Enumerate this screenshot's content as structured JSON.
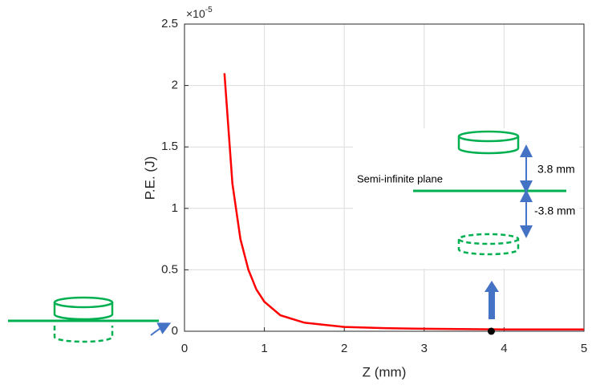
{
  "chart_data": {
    "type": "line",
    "multiplier": "×10",
    "multiplier_exponent": "-5",
    "x_label": "Z (mm)",
    "y_label": "P.E. (J)",
    "x": [
      0.5,
      0.6,
      0.7,
      0.8,
      0.9,
      1.0,
      1.2,
      1.5,
      2.0,
      2.5,
      3.0,
      4.0,
      5.0
    ],
    "series": [
      {
        "color": "#ff0000",
        "values": [
          2.1,
          1.2,
          0.75,
          0.5,
          0.34,
          0.24,
          0.13,
          0.07,
          0.035,
          0.025,
          0.02,
          0.015,
          0.015
        ]
      }
    ],
    "point": {
      "x": 3.84,
      "y": 0,
      "color": "#000000"
    },
    "xlim": [
      0,
      5
    ],
    "xticks": [
      0,
      1,
      2,
      3,
      4,
      5
    ],
    "ylim": [
      0,
      2.5
    ],
    "yticks": [
      0,
      0.5,
      1,
      1.5,
      2,
      2.5
    ],
    "grid": true,
    "annotations": {
      "plane": "Semi-infinite plane",
      "up": "3.8 mm",
      "down": "-3.8 mm"
    }
  }
}
